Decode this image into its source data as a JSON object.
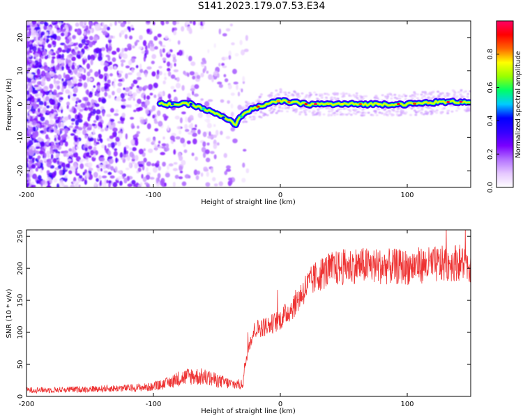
{
  "title": "S141.2023.179.07.53.E34",
  "chart_data": [
    {
      "type": "heatmap",
      "xlabel": "Height of straight line (km)",
      "ylabel": "Frequency (Hz)",
      "xlim": [
        -200,
        150
      ],
      "ylim": [
        -25,
        25
      ],
      "xticks": [
        -200,
        -100,
        0,
        100
      ],
      "yticks": [
        -20,
        -10,
        0,
        10,
        20
      ],
      "colorbar": {
        "label": "Normalized spectral amplitude",
        "range": [
          0,
          1
        ],
        "ticks": [
          0.0,
          0.2,
          0.4,
          0.6,
          0.8
        ],
        "colormap": [
          "#ffffff",
          "#e6c8ff",
          "#b473ff",
          "#7a00ff",
          "#3300ff",
          "#0000ff",
          "#00ccff",
          "#00ff66",
          "#99ff00",
          "#ffff00",
          "#ff6600",
          "#ff0000",
          "#ff0066"
        ]
      },
      "ridge_freq": [
        {
          "x": -90,
          "y": 0
        },
        {
          "x": -70,
          "y": 0
        },
        {
          "x": -50,
          "y": -3
        },
        {
          "x": -35,
          "y": -6
        },
        {
          "x": -30,
          "y": -3
        },
        {
          "x": -20,
          "y": -1
        },
        {
          "x": -10,
          "y": 0
        },
        {
          "x": 0,
          "y": 1
        },
        {
          "x": 10,
          "y": 0.5
        },
        {
          "x": 20,
          "y": 0
        },
        {
          "x": 50,
          "y": 0
        },
        {
          "x": 80,
          "y": 0
        },
        {
          "x": 100,
          "y": 0
        },
        {
          "x": 120,
          "y": 0.5
        },
        {
          "x": 150,
          "y": 0.8
        }
      ]
    },
    {
      "type": "line",
      "xlabel": "Height of straight line (km)",
      "ylabel": "SNR (10 * v/v)",
      "xlim": [
        -200,
        150
      ],
      "ylim": [
        0,
        260
      ],
      "xticks": [
        -200,
        -100,
        0,
        100
      ],
      "yticks": [
        0,
        50,
        100,
        150,
        200,
        250
      ],
      "color": "#ee3333",
      "series": [
        {
          "x": [
            -200,
            -180,
            -160,
            -140,
            -120,
            -100,
            -90,
            -80,
            -70,
            -60,
            -50,
            -40,
            -30,
            -25,
            -20,
            -10,
            0,
            10,
            20,
            30,
            40,
            50,
            60,
            80,
            100,
            110,
            120,
            130,
            140,
            150
          ],
          "values": [
            10,
            10,
            11,
            12,
            13,
            15,
            20,
            28,
            32,
            30,
            25,
            20,
            18,
            80,
            105,
            110,
            120,
            140,
            170,
            190,
            198,
            202,
            205,
            203,
            202,
            205,
            205,
            207,
            210,
            205
          ]
        }
      ]
    }
  ]
}
